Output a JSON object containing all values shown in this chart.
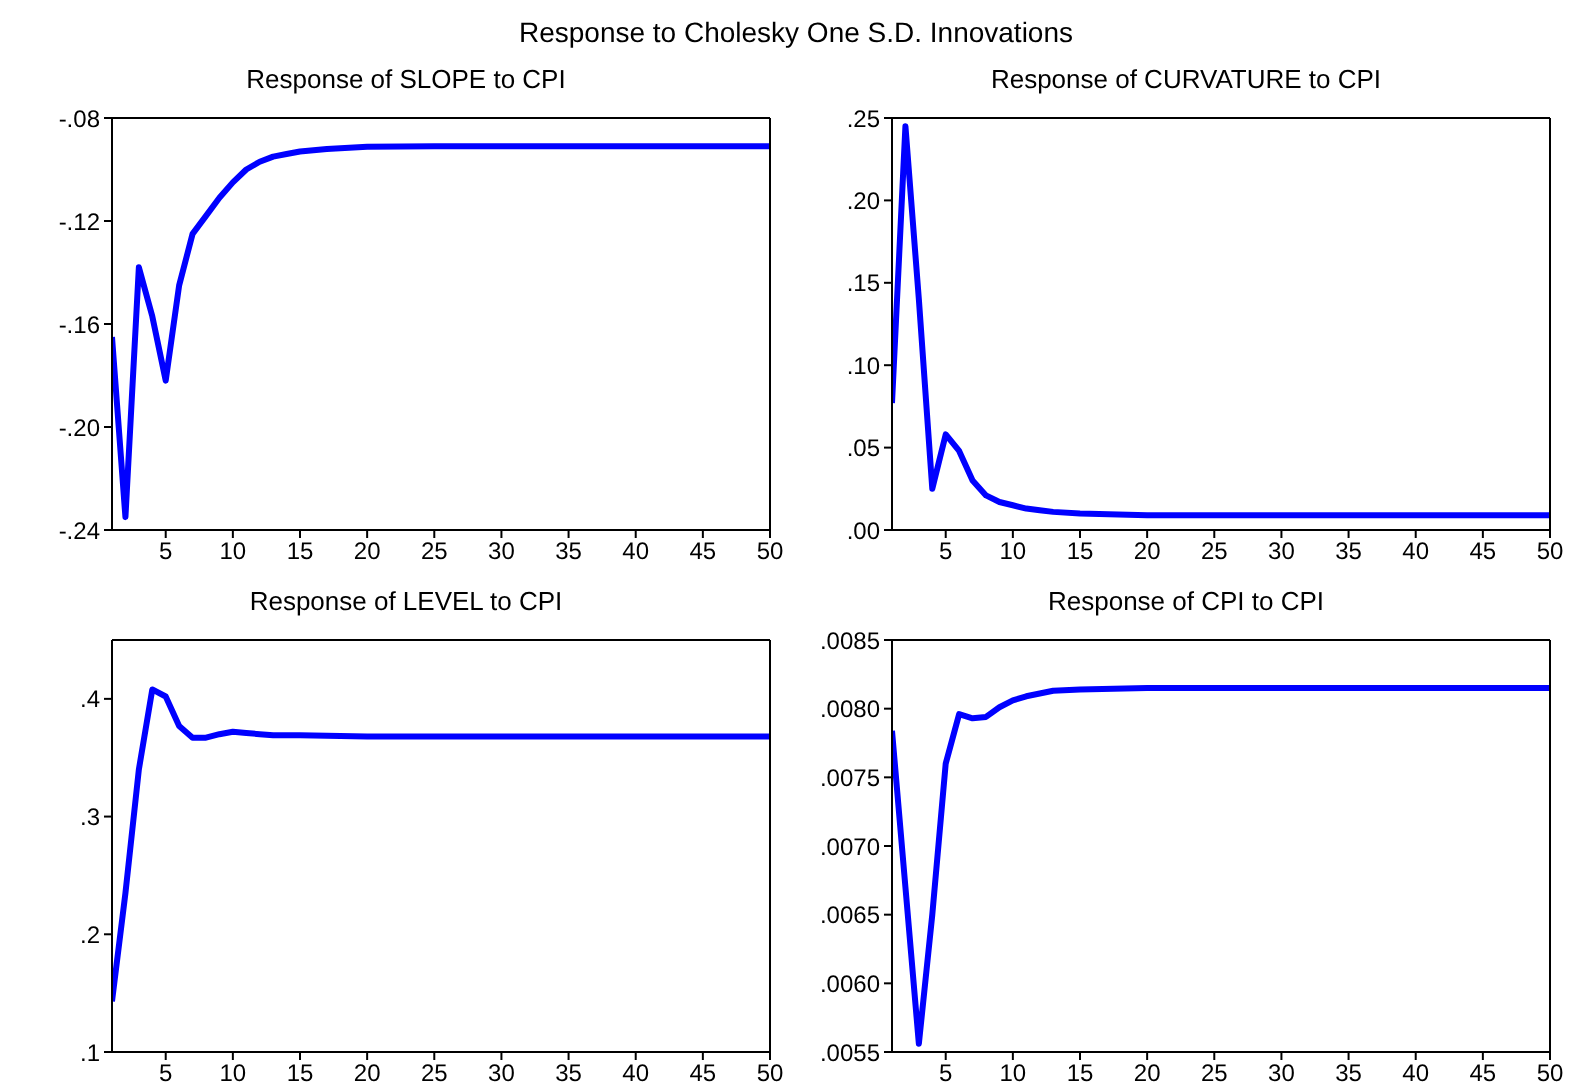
{
  "chart_data": [
    {
      "type": "line",
      "title": "Response of SLOPE to CPI",
      "annotations": [
        "Response to Cholesky One S.D. Innovations"
      ],
      "x": [
        1,
        2,
        3,
        4,
        5,
        6,
        7,
        8,
        9,
        10,
        11,
        12,
        13,
        14,
        15,
        17,
        20,
        25,
        50
      ],
      "series": [
        {
          "color": "#0000ff",
          "values": [
            -0.165,
            -0.235,
            -0.138,
            -0.157,
            -0.182,
            -0.145,
            -0.125,
            -0.118,
            -0.111,
            -0.105,
            -0.1,
            -0.097,
            -0.095,
            -0.094,
            -0.093,
            -0.092,
            -0.0912,
            -0.091,
            -0.091
          ]
        }
      ],
      "xlim": [
        1,
        50
      ],
      "xticks": [
        5,
        10,
        15,
        20,
        25,
        30,
        35,
        40,
        45,
        50
      ],
      "ylim": [
        -0.24,
        -0.08
      ],
      "yticks": [
        {
          "value": -0.24,
          "label": "-.24"
        },
        {
          "value": -0.2,
          "label": "-.20"
        },
        {
          "value": -0.16,
          "label": "-.16"
        },
        {
          "value": -0.12,
          "label": "-.12"
        },
        {
          "value": -0.08,
          "label": "-.08"
        }
      ]
    },
    {
      "type": "line",
      "title": "Response of CURVATURE to CPI",
      "x": [
        1,
        2,
        3,
        4,
        5,
        6,
        7,
        8,
        9,
        10,
        11,
        12,
        13,
        15,
        20,
        50
      ],
      "series": [
        {
          "color": "#0000ff",
          "values": [
            0.077,
            0.245,
            0.14,
            0.025,
            0.058,
            0.048,
            0.03,
            0.021,
            0.017,
            0.015,
            0.013,
            0.012,
            0.011,
            0.01,
            0.009,
            0.009
          ]
        }
      ],
      "xlim": [
        1,
        50
      ],
      "xticks": [
        5,
        10,
        15,
        20,
        25,
        30,
        35,
        40,
        45,
        50
      ],
      "ylim": [
        0,
        0.25
      ],
      "yticks": [
        {
          "value": 0,
          "label": ".00"
        },
        {
          "value": 0.05,
          "label": ".05"
        },
        {
          "value": 0.1,
          "label": ".10"
        },
        {
          "value": 0.15,
          "label": ".15"
        },
        {
          "value": 0.2,
          "label": ".20"
        },
        {
          "value": 0.25,
          "label": ".25"
        }
      ]
    },
    {
      "type": "line",
      "title": "Response of LEVEL to CPI",
      "x": [
        1,
        2,
        3,
        4,
        5,
        6,
        7,
        8,
        9,
        10,
        11,
        12,
        13,
        15,
        20,
        50
      ],
      "series": [
        {
          "color": "#0000ff",
          "values": [
            0.143,
            0.235,
            0.34,
            0.408,
            0.402,
            0.377,
            0.367,
            0.367,
            0.37,
            0.372,
            0.371,
            0.37,
            0.369,
            0.369,
            0.368,
            0.368
          ]
        }
      ],
      "xlim": [
        1,
        50
      ],
      "xticks": [
        5,
        10,
        15,
        20,
        25,
        30,
        35,
        40,
        45,
        50
      ],
      "ylim": [
        0.1,
        0.45
      ],
      "yticks": [
        {
          "value": 0.1,
          "label": ".1"
        },
        {
          "value": 0.2,
          "label": ".2"
        },
        {
          "value": 0.3,
          "label": ".3"
        },
        {
          "value": 0.4,
          "label": ".4"
        }
      ]
    },
    {
      "type": "line",
      "title": "Response of CPI to CPI",
      "x": [
        1,
        2,
        3,
        4,
        5,
        6,
        7,
        8,
        9,
        10,
        11,
        12,
        13,
        15,
        20,
        50
      ],
      "series": [
        {
          "color": "#0000ff",
          "values": [
            0.00784,
            0.0067,
            0.00556,
            0.0065,
            0.0076,
            0.00796,
            0.00793,
            0.00794,
            0.00801,
            0.00806,
            0.00809,
            0.00811,
            0.00813,
            0.00814,
            0.00815,
            0.00815
          ]
        }
      ],
      "xlim": [
        1,
        50
      ],
      "xticks": [
        5,
        10,
        15,
        20,
        25,
        30,
        35,
        40,
        45,
        50
      ],
      "ylim": [
        0.0055,
        0.0085
      ],
      "yticks": [
        {
          "value": 0.0055,
          "label": ".0055"
        },
        {
          "value": 0.006,
          "label": ".0060"
        },
        {
          "value": 0.0065,
          "label": ".0065"
        },
        {
          "value": 0.007,
          "label": ".0070"
        },
        {
          "value": 0.0075,
          "label": ".0075"
        },
        {
          "value": 0.008,
          "label": ".0080"
        },
        {
          "value": 0.0085,
          "label": ".0085"
        }
      ]
    }
  ]
}
